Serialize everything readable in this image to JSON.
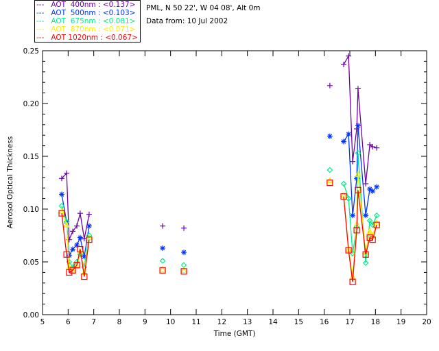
{
  "chart_data": {
    "type": "line",
    "xlabel": "Time (GMT)",
    "ylabel": "Aerosol Optical Thickness",
    "xlim": [
      5,
      20
    ],
    "ylim": [
      0,
      0.25
    ],
    "xticks": [
      "5",
      "6",
      "7",
      "8",
      "9",
      "10",
      "11",
      "12",
      "13",
      "14",
      "15",
      "16",
      "17",
      "18",
      "19",
      "20"
    ],
    "yticks": [
      "0.00",
      "0.05",
      "0.10",
      "0.15",
      "0.20",
      "0.25"
    ],
    "info": [
      "PML, N 50 22', W 04 08', Alt 0m",
      "Data from: 10 Jul 2002"
    ],
    "x": [
      5.75,
      5.94,
      6.04,
      6.18,
      6.34,
      6.47,
      6.63,
      6.82,
      9.69,
      10.52,
      16.22,
      16.76,
      16.95,
      17.11,
      17.27,
      17.32,
      17.62,
      17.78,
      17.89,
      18.05
    ],
    "connected_runs": [
      [
        0,
        7
      ],
      [
        11,
        19
      ]
    ],
    "series": [
      {
        "name": "AOT  400nm : <0.137>",
        "legend_dash": "---",
        "color": "#6a00a8",
        "marker": "plus",
        "values": [
          0.129,
          0.134,
          0.071,
          0.079,
          0.084,
          0.096,
          0.072,
          0.095,
          0.084,
          0.082,
          0.217,
          0.237,
          0.245,
          0.145,
          0.176,
          0.214,
          0.124,
          0.161,
          0.159,
          0.158
        ]
      },
      {
        "name": "AOT  500nm : <0.103>",
        "legend_dash": "---",
        "color": "#0033ff",
        "marker": "asterisk",
        "values": [
          0.114,
          0.088,
          0.056,
          0.062,
          0.066,
          0.073,
          0.055,
          0.084,
          0.063,
          0.059,
          0.169,
          0.164,
          0.171,
          0.094,
          0.129,
          0.179,
          0.094,
          0.119,
          0.117,
          0.121
        ]
      },
      {
        "name": "AOT  675nm : <0.081>",
        "legend_dash": "---",
        "color": "#00ee88",
        "marker": "diamond",
        "values": [
          0.103,
          0.088,
          0.05,
          0.045,
          0.05,
          0.057,
          0.045,
          0.075,
          0.051,
          0.047,
          0.137,
          0.124,
          0.11,
          0.058,
          0.083,
          0.153,
          0.049,
          0.089,
          0.085,
          0.094
        ]
      },
      {
        "name": "AOT  870nm : <0.071>",
        "legend_dash": "---",
        "color": "#ffee00",
        "marker": "triangle",
        "values": [
          0.098,
          0.085,
          0.045,
          0.042,
          0.046,
          0.06,
          0.04,
          0.073,
          0.043,
          0.042,
          0.127,
          0.113,
          0.062,
          0.036,
          0.086,
          0.133,
          0.059,
          0.079,
          0.075,
          0.087
        ]
      },
      {
        "name": "AOT 1020nm : <0.067>",
        "legend_dash": "---",
        "color": "#ff0000",
        "marker": "square",
        "values": [
          0.096,
          0.057,
          0.04,
          0.042,
          0.047,
          0.062,
          0.036,
          0.071,
          0.042,
          0.041,
          0.125,
          0.112,
          0.061,
          0.031,
          0.08,
          0.118,
          0.057,
          0.073,
          0.071,
          0.085
        ]
      }
    ]
  }
}
